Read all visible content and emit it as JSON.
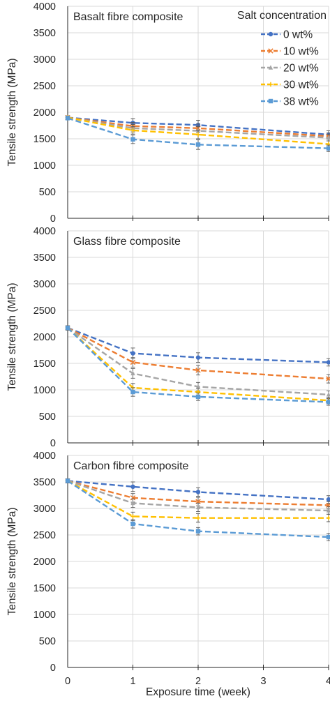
{
  "chart_data": [
    {
      "type": "line",
      "title": "Basalt fibre composite",
      "ylabel": "Tensile strength (MPa)",
      "xlabel": "",
      "ylim": [
        0,
        4000
      ],
      "y_ticks": [
        "0",
        "500",
        "1000",
        "1500",
        "2000",
        "2500",
        "3000",
        "3500",
        "4000"
      ],
      "x": [
        0,
        1,
        2,
        4
      ],
      "grid": true,
      "legend": {
        "title": "Salt concentration",
        "position": "top-right"
      },
      "series": [
        {
          "name": "0 wt%",
          "color": "#4472C4",
          "marker": "circle",
          "values": [
            1900,
            1800,
            1760,
            1580
          ],
          "errors": [
            30,
            80,
            90,
            70
          ]
        },
        {
          "name": "10 wt%",
          "color": "#ED7D31",
          "marker": "x",
          "values": [
            1900,
            1740,
            1700,
            1550
          ],
          "errors": [
            30,
            70,
            80,
            60
          ]
        },
        {
          "name": "20 wt%",
          "color": "#A5A5A5",
          "marker": "triangle",
          "values": [
            1900,
            1700,
            1650,
            1520
          ],
          "errors": [
            30,
            70,
            80,
            60
          ]
        },
        {
          "name": "30 wt%",
          "color": "#FFC000",
          "marker": "plus",
          "values": [
            1900,
            1660,
            1580,
            1400
          ],
          "errors": [
            30,
            70,
            80,
            60
          ]
        },
        {
          "name": "38 wt%",
          "color": "#5B9BD5",
          "marker": "square",
          "values": [
            1890,
            1490,
            1390,
            1320
          ],
          "errors": [
            30,
            80,
            90,
            60
          ]
        }
      ]
    },
    {
      "type": "line",
      "title": "Glass fibre composite",
      "ylabel": "Tensile strength (MPa)",
      "xlabel": "",
      "ylim": [
        0,
        4000
      ],
      "y_ticks": [
        "0",
        "500",
        "1000",
        "1500",
        "2000",
        "2500",
        "3000",
        "3500",
        "4000"
      ],
      "x": [
        0,
        1,
        2,
        4
      ],
      "grid": true,
      "series": [
        {
          "name": "0 wt%",
          "color": "#4472C4",
          "marker": "circle",
          "values": [
            2170,
            1690,
            1610,
            1520
          ],
          "errors": [
            40,
            100,
            90,
            70
          ]
        },
        {
          "name": "10 wt%",
          "color": "#ED7D31",
          "marker": "x",
          "values": [
            2170,
            1520,
            1370,
            1210
          ],
          "errors": [
            40,
            90,
            90,
            80
          ]
        },
        {
          "name": "20 wt%",
          "color": "#A5A5A5",
          "marker": "triangle",
          "values": [
            2170,
            1310,
            1060,
            910
          ],
          "errors": [
            40,
            90,
            80,
            70
          ]
        },
        {
          "name": "30 wt%",
          "color": "#FFC000",
          "marker": "plus",
          "values": [
            2170,
            1040,
            960,
            800
          ],
          "errors": [
            40,
            80,
            70,
            60
          ]
        },
        {
          "name": "38 wt%",
          "color": "#5B9BD5",
          "marker": "square",
          "values": [
            2170,
            960,
            870,
            770
          ],
          "errors": [
            40,
            80,
            70,
            60
          ]
        }
      ]
    },
    {
      "type": "line",
      "title": "Carbon fibre composite",
      "ylabel": "Tensile strength  (MPa)",
      "xlabel": "Exposure time (week)",
      "ylim": [
        0,
        4000
      ],
      "y_ticks": [
        "0",
        "500",
        "1000",
        "1500",
        "2000",
        "2500",
        "3000",
        "3500",
        "4000"
      ],
      "x": [
        0,
        1,
        2,
        4
      ],
      "x_ticks": [
        "0",
        "1",
        "2",
        "3",
        "4"
      ],
      "grid": true,
      "series": [
        {
          "name": "0 wt%",
          "color": "#4472C4",
          "marker": "circle",
          "values": [
            3520,
            3410,
            3310,
            3170
          ],
          "errors": [
            40,
            90,
            80,
            70
          ]
        },
        {
          "name": "10 wt%",
          "color": "#ED7D31",
          "marker": "x",
          "values": [
            3520,
            3200,
            3130,
            3060
          ],
          "errors": [
            40,
            80,
            80,
            70
          ]
        },
        {
          "name": "20 wt%",
          "color": "#A5A5A5",
          "marker": "triangle",
          "values": [
            3520,
            3100,
            3020,
            2960
          ],
          "errors": [
            40,
            80,
            80,
            70
          ]
        },
        {
          "name": "30 wt%",
          "color": "#FFC000",
          "marker": "plus",
          "values": [
            3520,
            2850,
            2820,
            2820
          ],
          "errors": [
            40,
            80,
            80,
            70
          ]
        },
        {
          "name": "38 wt%",
          "color": "#5B9BD5",
          "marker": "square",
          "values": [
            3520,
            2710,
            2570,
            2460
          ],
          "errors": [
            40,
            80,
            70,
            70
          ]
        }
      ]
    }
  ]
}
